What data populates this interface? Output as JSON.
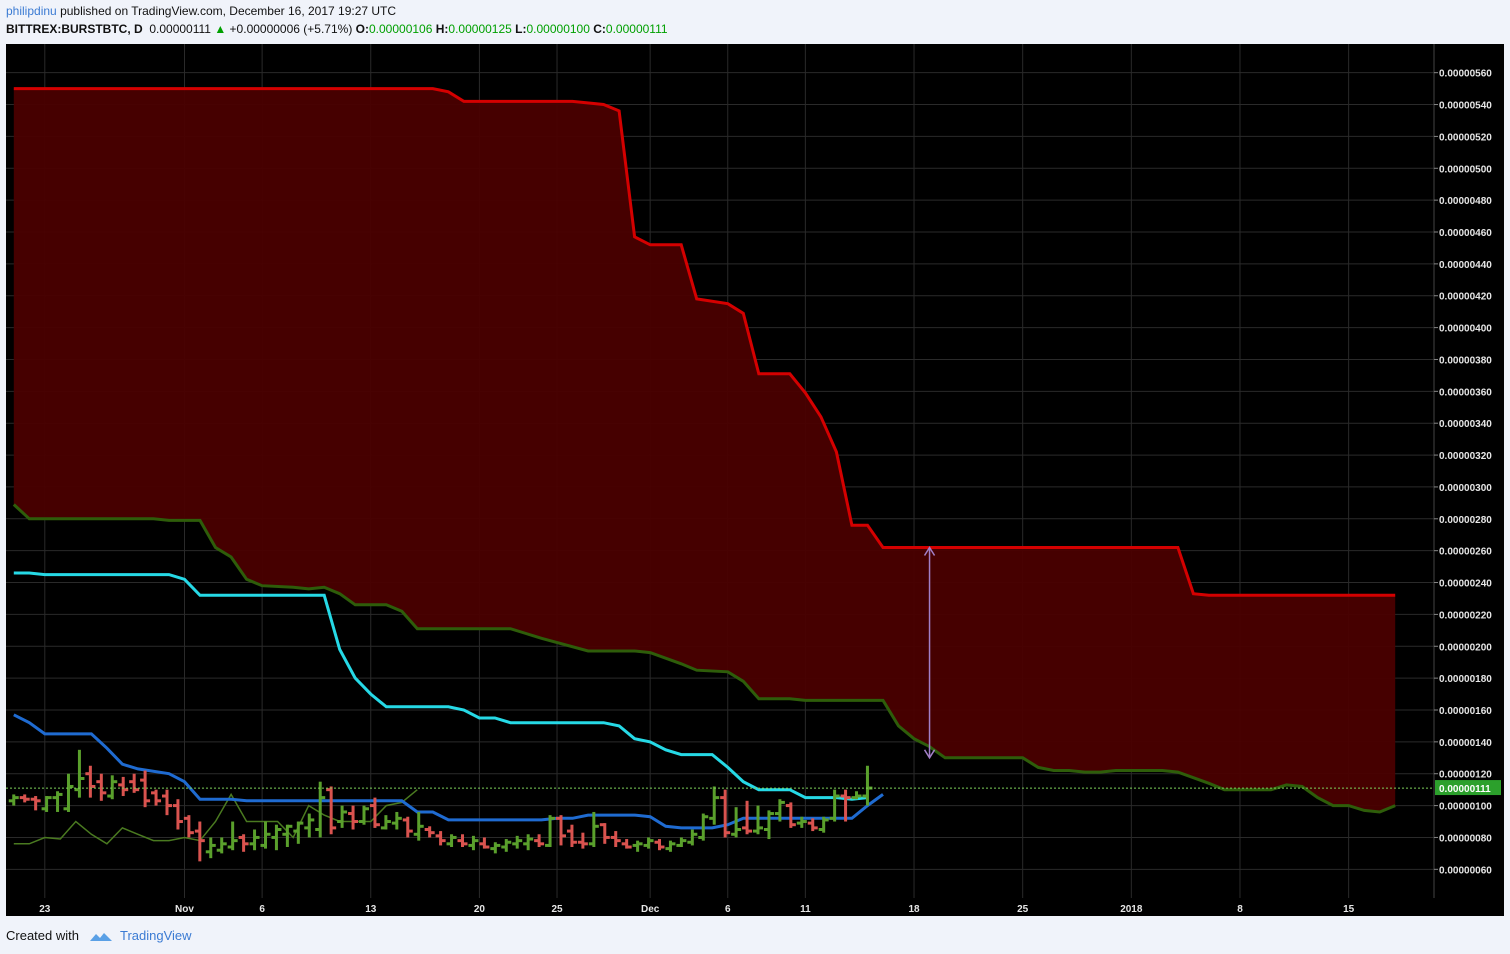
{
  "header": {
    "author": "philipdinu",
    "published_text": "published on TradingView.com, December 16, 2017 19:27 UTC",
    "symbol": "BITTREX:BURSTBTC, D",
    "last": "0.00000111",
    "change_arrow": "▲",
    "change": "+0.00000006 (+5.71%)",
    "o_label": "O:",
    "o_value": "0.00000106",
    "h_label": "H:",
    "h_value": "0.00000125",
    "l_label": "L:",
    "l_value": "0.00000100",
    "c_label": "C:",
    "c_value": "0.00000111"
  },
  "footer": {
    "created_with": "Created with",
    "brand": "TradingView"
  },
  "colors": {
    "background": "#000000",
    "cloud_fill": "#4a0000",
    "span_b": "#d40000",
    "span_a": "#2e5d0a",
    "kijun": "#26d9e6",
    "tenkan": "#1f6bd1",
    "chikou": "#4a7a20",
    "up_bar": "#5aa02c",
    "down_bar": "#d9534f",
    "arrow": "#a27fc7",
    "price_label_bg": "#2ca02c"
  },
  "chart_data": {
    "type": "ohlc-ichimoku",
    "symbol": "BITTREX:BURSTBTC",
    "timeframe": "D",
    "ylim": [
      4.2e-07,
      5.78e-06
    ],
    "y_ticks": [
      "0.00000060",
      "0.00000080",
      "0.00000100",
      "0.00000120",
      "0.00000140",
      "0.00000160",
      "0.00000180",
      "0.00000200",
      "0.00000220",
      "0.00000240",
      "0.00000260",
      "0.00000280",
      "0.00000300",
      "0.00000320",
      "0.00000340",
      "0.00000360",
      "0.00000380",
      "0.00000400",
      "0.00000420",
      "0.00000440",
      "0.00000460",
      "0.00000480",
      "0.00000500",
      "0.00000520",
      "0.00000540",
      "0.00000560"
    ],
    "last_price_label": "0.00000111",
    "last_price": 1.11e-06,
    "x_ticks": [
      {
        "label": "23",
        "day": 0
      },
      {
        "label": "Nov",
        "day": 9
      },
      {
        "label": "6",
        "day": 14
      },
      {
        "label": "13",
        "day": 21
      },
      {
        "label": "20",
        "day": 28
      },
      {
        "label": "25",
        "day": 33
      },
      {
        "label": "Dec",
        "day": 39
      },
      {
        "label": "6",
        "day": 44
      },
      {
        "label": "11",
        "day": 49
      },
      {
        "label": "18",
        "day": 56
      },
      {
        "label": "25",
        "day": 63
      },
      {
        "label": "2018",
        "day": 70
      },
      {
        "label": "8",
        "day": 77
      },
      {
        "label": "15",
        "day": 84
      }
    ],
    "day_range": [
      -2.5,
      89.5
    ],
    "ohlc_start_day": -2,
    "ohlc": [
      [
        1.03,
        1.07,
        1.0,
        1.05
      ],
      [
        1.05,
        1.07,
        1.02,
        1.04
      ],
      [
        1.04,
        1.06,
        0.97,
        1.03
      ],
      [
        0.98,
        1.06,
        0.96,
        1.05
      ],
      [
        1.05,
        1.09,
        0.96,
        1.07
      ],
      [
        0.98,
        1.2,
        0.96,
        1.12
      ],
      [
        1.1,
        1.35,
        1.05,
        1.17
      ],
      [
        1.2,
        1.25,
        1.05,
        1.12
      ],
      [
        1.15,
        1.2,
        1.03,
        1.08
      ],
      [
        1.06,
        1.19,
        1.04,
        1.15
      ],
      [
        1.13,
        1.18,
        1.06,
        1.1
      ],
      [
        1.15,
        1.2,
        1.08,
        1.1
      ],
      [
        1.16,
        1.22,
        0.99,
        1.03
      ],
      [
        1.08,
        1.1,
        1.0,
        1.03
      ],
      [
        1.06,
        1.1,
        0.94,
        1.0
      ],
      [
        1.0,
        1.04,
        0.85,
        0.9
      ],
      [
        0.92,
        0.94,
        0.8,
        0.83
      ],
      [
        0.84,
        0.9,
        0.65,
        0.78
      ],
      [
        0.71,
        0.8,
        0.67,
        0.75
      ],
      [
        0.72,
        0.8,
        0.7,
        0.76
      ],
      [
        0.74,
        0.9,
        0.72,
        0.78
      ],
      [
        0.8,
        0.82,
        0.71,
        0.76
      ],
      [
        0.76,
        0.85,
        0.72,
        0.8
      ],
      [
        0.75,
        0.9,
        0.73,
        0.82
      ],
      [
        0.8,
        0.88,
        0.72,
        0.85
      ],
      [
        0.82,
        0.88,
        0.74,
        0.87
      ],
      [
        0.84,
        0.9,
        0.76,
        0.89
      ],
      [
        0.86,
        0.95,
        0.8,
        0.91
      ],
      [
        0.85,
        1.15,
        0.8,
        1.05
      ],
      [
        1.1,
        1.12,
        0.82,
        0.86
      ],
      [
        0.9,
        1.0,
        0.86,
        0.96
      ],
      [
        0.95,
        1.0,
        0.85,
        0.9
      ],
      [
        0.9,
        1.0,
        0.88,
        0.98
      ],
      [
        1.0,
        1.05,
        0.86,
        0.88
      ],
      [
        0.86,
        0.94,
        0.85,
        0.9
      ],
      [
        0.89,
        0.96,
        0.85,
        0.92
      ],
      [
        0.91,
        0.93,
        0.8,
        0.84
      ],
      [
        0.82,
        0.96,
        0.78,
        0.87
      ],
      [
        0.85,
        0.87,
        0.8,
        0.83
      ],
      [
        0.81,
        0.84,
        0.75,
        0.78
      ],
      [
        0.76,
        0.82,
        0.74,
        0.8
      ],
      [
        0.78,
        0.82,
        0.74,
        0.76
      ],
      [
        0.75,
        0.81,
        0.72,
        0.78
      ],
      [
        0.76,
        0.8,
        0.73,
        0.74
      ],
      [
        0.73,
        0.77,
        0.7,
        0.75
      ],
      [
        0.74,
        0.79,
        0.71,
        0.77
      ],
      [
        0.76,
        0.81,
        0.73,
        0.78
      ],
      [
        0.76,
        0.82,
        0.72,
        0.79
      ],
      [
        0.78,
        0.82,
        0.74,
        0.76
      ],
      [
        0.75,
        0.94,
        0.74,
        0.92
      ],
      [
        0.92,
        0.94,
        0.75,
        0.81
      ],
      [
        0.84,
        0.88,
        0.74,
        0.77
      ],
      [
        0.77,
        0.83,
        0.73,
        0.76
      ],
      [
        0.76,
        0.96,
        0.74,
        0.87
      ],
      [
        0.88,
        0.89,
        0.76,
        0.8
      ],
      [
        0.8,
        0.84,
        0.74,
        0.78
      ],
      [
        0.76,
        0.79,
        0.73,
        0.74
      ],
      [
        0.75,
        0.78,
        0.71,
        0.76
      ],
      [
        0.75,
        0.8,
        0.73,
        0.78
      ],
      [
        0.77,
        0.79,
        0.72,
        0.74
      ],
      [
        0.73,
        0.78,
        0.71,
        0.76
      ],
      [
        0.75,
        0.8,
        0.74,
        0.78
      ],
      [
        0.77,
        0.85,
        0.75,
        0.82
      ],
      [
        0.8,
        0.95,
        0.78,
        0.93
      ],
      [
        0.92,
        1.12,
        0.88,
        1.05
      ],
      [
        1.05,
        1.1,
        0.8,
        0.83
      ],
      [
        0.82,
        0.99,
        0.8,
        0.85
      ],
      [
        0.86,
        1.03,
        0.82,
        0.84
      ],
      [
        0.84,
        1.0,
        0.82,
        0.86
      ],
      [
        0.85,
        0.97,
        0.79,
        0.95
      ],
      [
        0.95,
        1.04,
        0.9,
        1.02
      ],
      [
        1.0,
        1.02,
        0.86,
        0.88
      ],
      [
        0.89,
        0.93,
        0.86,
        0.9
      ],
      [
        0.89,
        0.92,
        0.84,
        0.86
      ],
      [
        0.85,
        0.93,
        0.83,
        0.91
      ],
      [
        0.92,
        1.1,
        0.9,
        1.06
      ],
      [
        1.06,
        1.1,
        0.9,
        1.05
      ],
      [
        1.05,
        1.09,
        1.04,
        1.06
      ],
      [
        1.06,
        1.25,
        1.0,
        1.11
      ]
    ],
    "span_b": [
      [
        -2,
        5.5
      ],
      [
        25,
        5.5
      ],
      [
        26,
        5.48
      ],
      [
        27,
        5.42
      ],
      [
        34,
        5.42
      ],
      [
        36,
        5.4
      ],
      [
        37,
        5.36
      ],
      [
        38,
        4.57
      ],
      [
        39,
        4.52
      ],
      [
        41,
        4.52
      ],
      [
        42,
        4.18
      ],
      [
        44,
        4.15
      ],
      [
        45,
        4.09
      ],
      [
        46,
        3.71
      ],
      [
        48,
        3.71
      ],
      [
        49,
        3.59
      ],
      [
        50,
        3.44
      ],
      [
        51,
        3.22
      ],
      [
        52,
        2.76
      ],
      [
        53,
        2.76
      ],
      [
        54,
        2.62
      ],
      [
        71,
        2.62
      ],
      [
        73,
        2.62
      ],
      [
        74,
        2.33
      ],
      [
        75,
        2.32
      ],
      [
        87,
        2.32
      ]
    ],
    "span_a": [
      [
        -2,
        2.89
      ],
      [
        -1,
        2.8
      ],
      [
        7,
        2.8
      ],
      [
        8,
        2.79
      ],
      [
        10,
        2.79
      ],
      [
        11,
        2.62
      ],
      [
        12,
        2.56
      ],
      [
        13,
        2.42
      ],
      [
        14,
        2.38
      ],
      [
        16,
        2.37
      ],
      [
        17,
        2.36
      ],
      [
        18,
        2.37
      ],
      [
        19,
        2.33
      ],
      [
        20,
        2.26
      ],
      [
        22,
        2.26
      ],
      [
        23,
        2.22
      ],
      [
        24,
        2.11
      ],
      [
        30,
        2.11
      ],
      [
        31,
        2.08
      ],
      [
        32,
        2.05
      ],
      [
        35,
        1.97
      ],
      [
        38,
        1.97
      ],
      [
        39,
        1.96
      ],
      [
        41,
        1.89
      ],
      [
        42,
        1.85
      ],
      [
        44,
        1.84
      ],
      [
        45,
        1.78
      ],
      [
        46,
        1.67
      ],
      [
        48,
        1.67
      ],
      [
        49,
        1.66
      ],
      [
        54,
        1.66
      ],
      [
        55,
        1.5
      ],
      [
        56,
        1.42
      ],
      [
        57,
        1.37
      ],
      [
        58,
        1.3
      ],
      [
        63,
        1.3
      ],
      [
        64,
        1.24
      ],
      [
        65,
        1.22
      ],
      [
        66,
        1.22
      ],
      [
        67,
        1.21
      ],
      [
        68,
        1.21
      ],
      [
        69,
        1.22
      ],
      [
        71,
        1.22
      ],
      [
        72,
        1.22
      ],
      [
        73,
        1.21
      ],
      [
        75,
        1.14
      ],
      [
        76,
        1.1
      ],
      [
        77,
        1.1
      ],
      [
        78,
        1.1
      ],
      [
        79,
        1.1
      ],
      [
        80,
        1.13
      ],
      [
        81,
        1.12
      ],
      [
        82,
        1.05
      ],
      [
        83,
        1.0
      ],
      [
        84,
        1.0
      ],
      [
        85,
        0.97
      ],
      [
        86,
        0.96
      ],
      [
        87,
        1.0
      ]
    ],
    "kijun": [
      [
        -2,
        2.46
      ],
      [
        -1,
        2.46
      ],
      [
        0,
        2.45
      ],
      [
        8,
        2.45
      ],
      [
        9,
        2.42
      ],
      [
        10,
        2.32
      ],
      [
        17,
        2.32
      ],
      [
        18,
        2.32
      ],
      [
        19,
        1.98
      ],
      [
        20,
        1.8
      ],
      [
        21,
        1.7
      ],
      [
        22,
        1.62
      ],
      [
        26,
        1.62
      ],
      [
        27,
        1.6
      ],
      [
        28,
        1.55
      ],
      [
        29,
        1.55
      ],
      [
        30,
        1.52
      ],
      [
        36,
        1.52
      ],
      [
        37,
        1.5
      ],
      [
        38,
        1.42
      ],
      [
        39,
        1.4
      ],
      [
        40,
        1.35
      ],
      [
        41,
        1.32
      ],
      [
        43,
        1.32
      ],
      [
        44,
        1.24
      ],
      [
        45,
        1.15
      ],
      [
        46,
        1.1
      ],
      [
        48,
        1.1
      ],
      [
        49,
        1.05
      ],
      [
        51,
        1.05
      ],
      [
        52,
        1.04
      ],
      [
        53,
        1.05
      ]
    ],
    "tenkan": [
      [
        -2,
        1.57
      ],
      [
        -1,
        1.52
      ],
      [
        0,
        1.45
      ],
      [
        3,
        1.45
      ],
      [
        4,
        1.36
      ],
      [
        5,
        1.26
      ],
      [
        6,
        1.23
      ],
      [
        8,
        1.2
      ],
      [
        9,
        1.15
      ],
      [
        10,
        1.04
      ],
      [
        12,
        1.04
      ],
      [
        13,
        1.03
      ],
      [
        18,
        1.03
      ],
      [
        23,
        1.03
      ],
      [
        24,
        0.96
      ],
      [
        25,
        0.96
      ],
      [
        26,
        0.91
      ],
      [
        30,
        0.91
      ],
      [
        32,
        0.91
      ],
      [
        33,
        0.92
      ],
      [
        34,
        0.92
      ],
      [
        35,
        0.94
      ],
      [
        38,
        0.94
      ],
      [
        39,
        0.93
      ],
      [
        40,
        0.87
      ],
      [
        41,
        0.86
      ],
      [
        43,
        0.86
      ],
      [
        44,
        0.88
      ],
      [
        45,
        0.92
      ],
      [
        50,
        0.92
      ],
      [
        52,
        0.92
      ],
      [
        53,
        1.0
      ],
      [
        54,
        1.07
      ]
    ],
    "chikou": [
      [
        -2,
        0.76
      ],
      [
        -1,
        0.76
      ],
      [
        0,
        0.8
      ],
      [
        1,
        0.79
      ],
      [
        2,
        0.9
      ],
      [
        3,
        0.82
      ],
      [
        4,
        0.76
      ],
      [
        5,
        0.86
      ],
      [
        6,
        0.82
      ],
      [
        7,
        0.78
      ],
      [
        8,
        0.78
      ],
      [
        9,
        0.8
      ],
      [
        10,
        0.78
      ],
      [
        11,
        0.9
      ],
      [
        12,
        1.07
      ],
      [
        13,
        0.9
      ],
      [
        14,
        0.9
      ],
      [
        15,
        0.9
      ],
      [
        16,
        0.8
      ],
      [
        17,
        1.0
      ],
      [
        18,
        0.94
      ],
      [
        19,
        0.9
      ],
      [
        20,
        0.9
      ],
      [
        21,
        0.9
      ],
      [
        22,
        1.0
      ],
      [
        23,
        1.02
      ],
      [
        24,
        1.1
      ]
    ],
    "annotations": [
      {
        "type": "double-arrow",
        "day": 57,
        "from": 1.3,
        "to": 2.62
      }
    ]
  }
}
